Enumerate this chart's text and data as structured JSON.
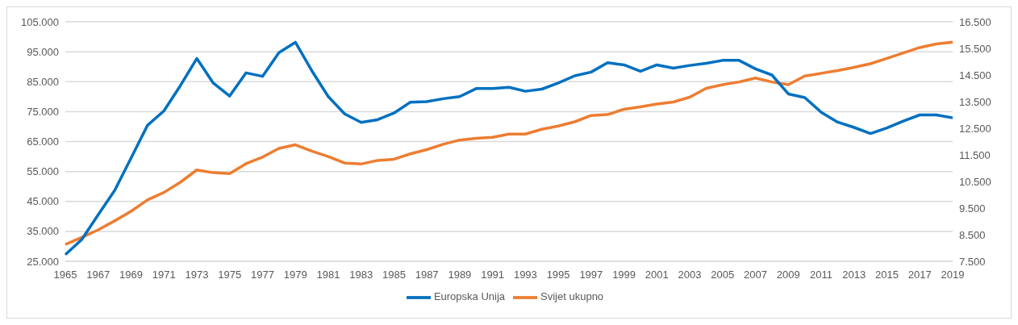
{
  "chart_data": {
    "type": "line",
    "categories": [
      "1965",
      null,
      "1967",
      null,
      "1969",
      null,
      "1971",
      null,
      "1973",
      null,
      "1975",
      null,
      "1977",
      null,
      "1979",
      null,
      "1981",
      null,
      "1983",
      null,
      "1985",
      null,
      "1987",
      null,
      "1989",
      null,
      "1991",
      null,
      "1993",
      null,
      "1995",
      null,
      "1997",
      null,
      "1999",
      null,
      "2001",
      null,
      "2003",
      null,
      "2005",
      null,
      "2007",
      null,
      "2009",
      null,
      "2011",
      null,
      "2013",
      null,
      "2015",
      null,
      "2017",
      null,
      "2019"
    ],
    "series": [
      {
        "name": "Svijet ukupno",
        "color": "#ed7d31",
        "values": [
          30600,
          33000,
          35500,
          38500,
          41700,
          45500,
          48000,
          51400,
          55500,
          54600,
          54300,
          57600,
          59800,
          62700,
          63900,
          61800,
          60000,
          57800,
          57500,
          58700,
          59100,
          60900,
          62300,
          64100,
          65500,
          66100,
          66400,
          67500,
          67500,
          69100,
          70200,
          71600,
          73700,
          74000,
          75800,
          76600,
          77500,
          78200,
          79800,
          82800,
          84000,
          84900,
          86200,
          84900,
          84000,
          86900,
          87800,
          88700,
          89800,
          91000,
          92800,
          94600,
          96400,
          97600,
          98200
        ]
      },
      {
        "name": "Europska Unija",
        "color": "#0070c0",
        "axis": "y2",
        "values": [
          7750,
          8320,
          9250,
          10160,
          11380,
          12610,
          13150,
          14100,
          15120,
          14200,
          13710,
          14580,
          14450,
          15340,
          15730,
          14660,
          13690,
          13040,
          12720,
          12820,
          13070,
          13480,
          13500,
          13610,
          13690,
          13990,
          13990,
          14040,
          13890,
          13970,
          14200,
          14470,
          14610,
          14960,
          14880,
          14640,
          14880,
          14760,
          14860,
          14940,
          15050,
          15050,
          14730,
          14500,
          13790,
          13650,
          13100,
          12730,
          12530,
          12300,
          12510,
          12770,
          13000,
          13000,
          12890
        ]
      }
    ],
    "ylim": [
      25000,
      105000
    ],
    "yticks": [
      {
        "value": 25000,
        "label": "25.000"
      },
      {
        "value": 35000,
        "label": "35.000"
      },
      {
        "value": 45000,
        "label": "45.000"
      },
      {
        "value": 55000,
        "label": "55.000"
      },
      {
        "value": 65000,
        "label": "65.000"
      },
      {
        "value": 75000,
        "label": "75.000"
      },
      {
        "value": 85000,
        "label": "85.000"
      },
      {
        "value": 95000,
        "label": "95.000"
      },
      {
        "value": 105000,
        "label": "105.000"
      }
    ],
    "y2lim": [
      7500,
      16500
    ],
    "y2ticks": [
      {
        "value": 7500,
        "label": "7.500"
      },
      {
        "value": 8500,
        "label": "8.500"
      },
      {
        "value": 9500,
        "label": "9.500"
      },
      {
        "value": 10500,
        "label": "10.500"
      },
      {
        "value": 11500,
        "label": "11.500"
      },
      {
        "value": 12500,
        "label": "12.500"
      },
      {
        "value": 13500,
        "label": "13.500"
      },
      {
        "value": 14500,
        "label": "14.500"
      },
      {
        "value": 15500,
        "label": "15.500"
      },
      {
        "value": 16500,
        "label": "16.500"
      }
    ],
    "grid": "y",
    "legend": "bottom",
    "marker": "none",
    "line_style": "solid"
  }
}
